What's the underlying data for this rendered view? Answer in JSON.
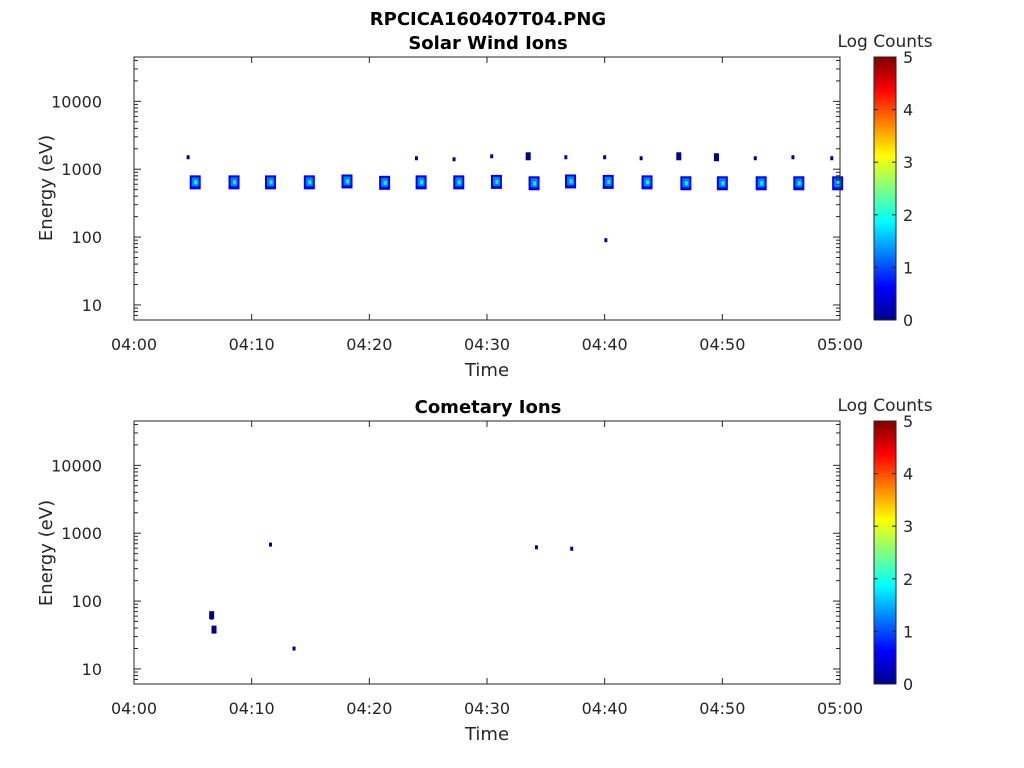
{
  "figure_title": "RPCICA160407T04.PNG",
  "colormap": [
    "#00008f",
    "#0000ff",
    "#007fff",
    "#00ffff",
    "#7fff7f",
    "#ffff00",
    "#ff7f00",
    "#ff0000",
    "#7f0000"
  ],
  "chart_data": [
    {
      "type": "heatmap",
      "title": "Solar Wind Ions",
      "xlabel": "Time",
      "ylabel": "Energy (eV)",
      "xlim": [
        "04:00",
        "05:00"
      ],
      "x_ticks": [
        "04:00",
        "04:10",
        "04:20",
        "04:30",
        "04:40",
        "04:50",
        "05:00"
      ],
      "ylim": [
        6,
        45000
      ],
      "yscale": "log",
      "y_ticks": [
        10,
        100,
        1000,
        10000
      ],
      "y_tick_labels": [
        "10",
        "100",
        "1000",
        "10000"
      ],
      "colorbar": {
        "label": "Log Counts",
        "range": [
          0,
          5
        ],
        "ticks": [
          "0",
          "1",
          "2",
          "3",
          "4",
          "5"
        ]
      },
      "blobs": [
        {
          "t": 4.6,
          "e": 1500,
          "log_counts": 0.3
        },
        {
          "t": 5.2,
          "e": 640,
          "log_counts": 1.4
        },
        {
          "t": 8.5,
          "e": 640,
          "log_counts": 1.4
        },
        {
          "t": 11.6,
          "e": 640,
          "log_counts": 1.4
        },
        {
          "t": 14.9,
          "e": 640,
          "log_counts": 1.5
        },
        {
          "t": 18.1,
          "e": 660,
          "log_counts": 1.5
        },
        {
          "t": 21.3,
          "e": 630,
          "log_counts": 1.4
        },
        {
          "t": 24.0,
          "e": 1450,
          "log_counts": 0.3
        },
        {
          "t": 24.4,
          "e": 640,
          "log_counts": 1.4
        },
        {
          "t": 27.2,
          "e": 1400,
          "log_counts": 0.2
        },
        {
          "t": 27.6,
          "e": 640,
          "log_counts": 1.4
        },
        {
          "t": 30.4,
          "e": 1550,
          "log_counts": 0.3
        },
        {
          "t": 30.8,
          "e": 650,
          "log_counts": 1.3
        },
        {
          "t": 33.5,
          "e": 1550,
          "log_counts": 0.4
        },
        {
          "t": 34.0,
          "e": 620,
          "log_counts": 1.4
        },
        {
          "t": 36.7,
          "e": 1500,
          "log_counts": 0.3
        },
        {
          "t": 37.1,
          "e": 660,
          "log_counts": 1.5
        },
        {
          "t": 40.0,
          "e": 1500,
          "log_counts": 0.3
        },
        {
          "t": 40.3,
          "e": 650,
          "log_counts": 1.5
        },
        {
          "t": 40.1,
          "e": 90,
          "log_counts": 0.2
        },
        {
          "t": 43.1,
          "e": 1450,
          "log_counts": 0.3
        },
        {
          "t": 43.6,
          "e": 640,
          "log_counts": 1.5
        },
        {
          "t": 46.3,
          "e": 1550,
          "log_counts": 0.4
        },
        {
          "t": 46.9,
          "e": 620,
          "log_counts": 1.4
        },
        {
          "t": 49.5,
          "e": 1500,
          "log_counts": 0.4
        },
        {
          "t": 50.0,
          "e": 620,
          "log_counts": 1.5
        },
        {
          "t": 52.8,
          "e": 1450,
          "log_counts": 0.3
        },
        {
          "t": 53.3,
          "e": 620,
          "log_counts": 1.5
        },
        {
          "t": 56.0,
          "e": 1500,
          "log_counts": 0.3
        },
        {
          "t": 56.5,
          "e": 620,
          "log_counts": 1.4
        },
        {
          "t": 59.3,
          "e": 1450,
          "log_counts": 0.3
        },
        {
          "t": 59.8,
          "e": 620,
          "log_counts": 1.4
        }
      ]
    },
    {
      "type": "heatmap",
      "title": "Cometary Ions",
      "xlabel": "Time",
      "ylabel": "Energy (eV)",
      "xlim": [
        "04:00",
        "05:00"
      ],
      "x_ticks": [
        "04:00",
        "04:10",
        "04:20",
        "04:30",
        "04:40",
        "04:50",
        "05:00"
      ],
      "ylim": [
        6,
        45000
      ],
      "yscale": "log",
      "y_ticks": [
        10,
        100,
        1000,
        10000
      ],
      "y_tick_labels": [
        "10",
        "100",
        "1000",
        "10000"
      ],
      "colorbar": {
        "label": "Log Counts",
        "range": [
          0,
          5
        ],
        "ticks": [
          "0",
          "1",
          "2",
          "3",
          "4",
          "5"
        ]
      },
      "blobs": [
        {
          "t": 6.6,
          "e": 62,
          "log_counts": 0.4
        },
        {
          "t": 6.6,
          "e": 57,
          "log_counts": 0.3
        },
        {
          "t": 6.8,
          "e": 38,
          "log_counts": 0.4
        },
        {
          "t": 11.6,
          "e": 680,
          "log_counts": 0.2
        },
        {
          "t": 13.6,
          "e": 20,
          "log_counts": 0.3
        },
        {
          "t": 34.2,
          "e": 620,
          "log_counts": 0.2
        },
        {
          "t": 37.2,
          "e": 590,
          "log_counts": 0.2
        }
      ]
    }
  ]
}
